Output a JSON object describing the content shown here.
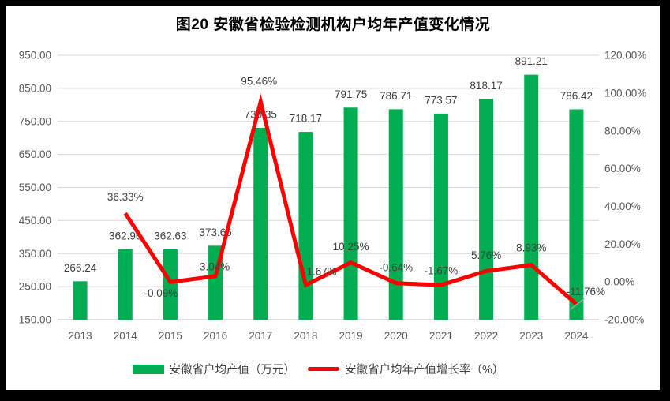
{
  "figure": {
    "title": "图20 安徽省检验检测机构户均年产值变化情况"
  },
  "chart_data": {
    "type": "bar+line-combo",
    "title": "图20 安徽省检验检测机构户均年产值变化情况",
    "categories": [
      "2013",
      "2014",
      "2015",
      "2016",
      "2017",
      "2018",
      "2019",
      "2020",
      "2021",
      "2022",
      "2023",
      "2024"
    ],
    "series": [
      {
        "name": "安徽省户均产值（万元）",
        "type": "bar",
        "color": "#00AD50",
        "axis": "left",
        "values": [
          266.24,
          362.96,
          362.63,
          373.66,
          730.35,
          718.17,
          791.75,
          786.71,
          773.57,
          818.17,
          891.21,
          786.42
        ],
        "labels": [
          "266.24",
          "362.96",
          "362.63",
          "373.66",
          "730.35",
          "718.17",
          "791.75",
          "786.71",
          "773.57",
          "818.17",
          "891.21",
          "786.42"
        ]
      },
      {
        "name": "安徽省户均年产值增长率（%）",
        "type": "line",
        "color": "#FE0000",
        "axis": "right",
        "values": [
          null,
          36.33,
          -0.09,
          3.04,
          95.46,
          -1.67,
          10.25,
          -0.64,
          -1.67,
          5.76,
          8.93,
          -11.76
        ],
        "labels": [
          null,
          "36.33%",
          "-0.09%",
          "3.04%",
          "95.46%",
          "-1.67%",
          "10.25%",
          "-0.64%",
          "-1.67%",
          "5.76%",
          "8.93%",
          "-11.76%"
        ],
        "label_offsets": [
          null,
          [
            0,
            -21
          ],
          [
            -12,
            14
          ],
          [
            -1,
            -12
          ],
          [
            -2,
            -26
          ],
          [
            18,
            -17
          ],
          [
            0,
            -20
          ],
          [
            0,
            -20
          ],
          [
            0,
            -18
          ],
          [
            0,
            -20
          ],
          [
            0,
            -22
          ],
          [
            12,
            -16
          ]
        ]
      }
    ],
    "left_axis": {
      "min": 150,
      "max": 950,
      "step": 100,
      "ticks": [
        "150.00",
        "250.00",
        "350.00",
        "450.00",
        "550.00",
        "650.00",
        "750.00",
        "850.00",
        "950.00"
      ]
    },
    "right_axis": {
      "min": -20,
      "max": 120,
      "step": 20,
      "ticks": [
        "-20.00%",
        "0.00%",
        "20.00%",
        "40.00%",
        "60.00%",
        "80.00%",
        "100.00%",
        "120.00%"
      ]
    },
    "grid": true,
    "legend_position": "bottom",
    "leader_line": {
      "series": 1,
      "index": 11,
      "color": "#A6A6A6"
    }
  },
  "legend": {
    "items": [
      {
        "label": "安徽省户均产值（万元）",
        "swatch": "bar",
        "color": "#00AD50"
      },
      {
        "label": "安徽省户均年产值增长率（%）",
        "swatch": "line",
        "color": "#FE0000"
      }
    ]
  },
  "colors": {
    "bar": "#00AD50",
    "line": "#FE0000",
    "grid": "#D9D9D9",
    "axis_line": "#BFBFBF",
    "axis_text": "#595959",
    "data_label": "#404040",
    "frame": "#000000",
    "background": "#FFFFFF"
  }
}
